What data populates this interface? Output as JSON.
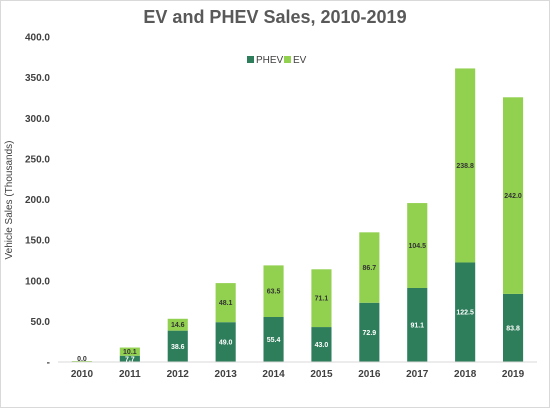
{
  "chart_data": {
    "type": "bar",
    "stacked": true,
    "title": "EV and PHEV Sales, 2010-2019",
    "xlabel": "",
    "ylabel": "Vehicle Sales (Thousands)",
    "ylim": [
      0,
      400
    ],
    "y_ticks": [
      "-",
      "50.0",
      "100.0",
      "150.0",
      "200.0",
      "250.0",
      "300.0",
      "350.0",
      "400.0"
    ],
    "y_tick_values": [
      0,
      50,
      100,
      150,
      200,
      250,
      300,
      350,
      400
    ],
    "grid": false,
    "legend_position": "top-center",
    "categories": [
      "2010",
      "2011",
      "2012",
      "2013",
      "2014",
      "2015",
      "2016",
      "2017",
      "2018",
      "2019"
    ],
    "series": [
      {
        "name": "PHEV",
        "color": "#2e7d5b",
        "values": [
          0.0,
          7.7,
          38.6,
          49.0,
          55.4,
          43.0,
          72.9,
          91.1,
          122.5,
          83.8
        ],
        "labels": [
          "",
          "7.7",
          "38.6",
          "49.0",
          "55.4",
          "43.0",
          "72.9",
          "91.1",
          "122.5",
          "83.8"
        ]
      },
      {
        "name": "EV",
        "color": "#92d050",
        "values": [
          0.0,
          10.1,
          14.6,
          48.1,
          63.5,
          71.1,
          86.7,
          104.5,
          238.8,
          242.0
        ],
        "labels": [
          "0.0",
          "10.1",
          "14.6",
          "48.1",
          "63.5",
          "71.1",
          "86.7",
          "104.5",
          "238.8",
          "242.0"
        ]
      }
    ]
  }
}
